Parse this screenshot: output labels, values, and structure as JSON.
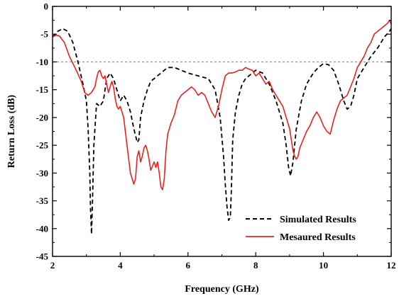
{
  "chart_data": {
    "type": "line",
    "xlabel": "Frequency (GHz)",
    "ylabel": "Return Loss (dB)",
    "xlim": [
      2,
      12
    ],
    "ylim": [
      -45,
      0
    ],
    "xticks": [
      2,
      4,
      6,
      8,
      10,
      12
    ],
    "yticks": [
      0,
      -5,
      -10,
      -15,
      -20,
      -25,
      -30,
      -35,
      -40,
      -45
    ],
    "reference_line": {
      "y": -10,
      "style": "dotted",
      "color": "#999999"
    },
    "legend": {
      "position": "bottom-right"
    },
    "series": [
      {
        "name": "Simulated Results",
        "color": "#000000",
        "dash": "dashed",
        "x": [
          2.0,
          2.15,
          2.3,
          2.45,
          2.6,
          2.75,
          2.9,
          3.0,
          3.05,
          3.1,
          3.12,
          3.15,
          3.18,
          3.22,
          3.3,
          3.4,
          3.5,
          3.6,
          3.7,
          3.8,
          3.9,
          4.0,
          4.1,
          4.2,
          4.3,
          4.4,
          4.5,
          4.55,
          4.6,
          4.7,
          4.8,
          4.9,
          5.0,
          5.2,
          5.4,
          5.6,
          5.8,
          6.0,
          6.3,
          6.6,
          6.8,
          6.95,
          7.05,
          7.1,
          7.15,
          7.2,
          7.25,
          7.28,
          7.32,
          7.4,
          7.5,
          7.6,
          7.7,
          7.8,
          8.0,
          8.2,
          8.4,
          8.6,
          8.8,
          8.9,
          8.97,
          9.03,
          9.1,
          9.2,
          9.35,
          9.5,
          9.7,
          9.85,
          10.0,
          10.15,
          10.3,
          10.45,
          10.6,
          10.7,
          10.8,
          10.9,
          11.0,
          11.2,
          11.4,
          11.6,
          11.8,
          11.95,
          12.0
        ],
        "y": [
          -5.5,
          -4.5,
          -4.0,
          -4.5,
          -6.5,
          -10.0,
          -14.0,
          -17.0,
          -22.0,
          -30.0,
          -36.0,
          -41.0,
          -35.0,
          -25.0,
          -17.5,
          -18.0,
          -17.0,
          -13.0,
          -12.0,
          -13.0,
          -15.0,
          -17.0,
          -16.0,
          -17.0,
          -19.0,
          -22.0,
          -24.5,
          -24.0,
          -20.0,
          -17.0,
          -15.0,
          -13.5,
          -13.0,
          -12.0,
          -11.0,
          -11.0,
          -11.5,
          -12.0,
          -12.5,
          -13.0,
          -15.0,
          -20.0,
          -27.0,
          -32.0,
          -36.0,
          -38.5,
          -38.0,
          -33.0,
          -24.0,
          -19.0,
          -16.0,
          -14.0,
          -13.0,
          -12.5,
          -11.5,
          -12.0,
          -14.0,
          -17.0,
          -21.0,
          -25.0,
          -29.0,
          -30.5,
          -28.0,
          -22.0,
          -17.0,
          -14.0,
          -12.0,
          -11.0,
          -10.3,
          -10.5,
          -11.5,
          -14.0,
          -17.0,
          -18.5,
          -18.0,
          -16.0,
          -13.0,
          -11.0,
          -9.0,
          -7.5,
          -5.5,
          -4.5,
          -4.0
        ]
      },
      {
        "name": "Mesaured Results",
        "color": "#e8231f",
        "dash": "solid",
        "x": [
          2.0,
          2.1,
          2.2,
          2.35,
          2.5,
          2.7,
          2.85,
          2.95,
          3.05,
          3.15,
          3.25,
          3.3,
          3.35,
          3.4,
          3.45,
          3.5,
          3.55,
          3.6,
          3.65,
          3.7,
          3.75,
          3.8,
          3.85,
          3.9,
          3.95,
          4.0,
          4.1,
          4.2,
          4.3,
          4.4,
          4.45,
          4.5,
          4.55,
          4.6,
          4.65,
          4.7,
          4.75,
          4.8,
          4.85,
          4.9,
          5.0,
          5.05,
          5.1,
          5.15,
          5.2,
          5.25,
          5.3,
          5.35,
          5.4,
          5.5,
          5.6,
          5.7,
          5.8,
          5.9,
          6.0,
          6.1,
          6.2,
          6.3,
          6.4,
          6.5,
          6.6,
          6.7,
          6.8,
          6.9,
          7.0,
          7.1,
          7.2,
          7.3,
          7.4,
          7.5,
          7.6,
          7.7,
          7.8,
          7.9,
          8.0,
          8.1,
          8.2,
          8.3,
          8.4,
          8.5,
          8.6,
          8.7,
          8.8,
          8.9,
          9.0,
          9.05,
          9.1,
          9.15,
          9.2,
          9.25,
          9.3,
          9.4,
          9.5,
          9.6,
          9.7,
          9.8,
          9.9,
          10.0,
          10.1,
          10.2,
          10.3,
          10.4,
          10.5,
          10.6,
          10.7,
          10.8,
          10.9,
          11.0,
          11.1,
          11.2,
          11.3,
          11.4,
          11.5,
          11.6,
          11.7,
          11.8,
          11.9,
          11.95,
          12.0
        ],
        "y": [
          -5.5,
          -5.2,
          -5.3,
          -6.5,
          -9.0,
          -11.5,
          -13.5,
          -15.5,
          -16.0,
          -15.5,
          -14.5,
          -13.0,
          -11.8,
          -11.5,
          -12.5,
          -13.0,
          -12.5,
          -14.0,
          -15.5,
          -14.5,
          -13.5,
          -14.5,
          -16.5,
          -18.0,
          -18.5,
          -18.0,
          -20.0,
          -25.0,
          -30.0,
          -32.0,
          -31.0,
          -27.0,
          -26.0,
          -28.0,
          -27.0,
          -25.5,
          -25.0,
          -26.0,
          -27.5,
          -29.5,
          -28.0,
          -29.0,
          -28.0,
          -30.0,
          -32.5,
          -33.0,
          -31.0,
          -26.0,
          -23.0,
          -21.0,
          -19.5,
          -17.0,
          -16.0,
          -15.5,
          -15.0,
          -14.5,
          -15.0,
          -16.0,
          -15.5,
          -16.0,
          -17.5,
          -19.0,
          -20.0,
          -18.0,
          -15.0,
          -12.5,
          -12.0,
          -12.0,
          -11.8,
          -11.5,
          -11.5,
          -11.0,
          -11.3,
          -11.5,
          -12.5,
          -12.0,
          -13.0,
          -14.0,
          -13.5,
          -15.0,
          -16.0,
          -17.0,
          -18.0,
          -20.0,
          -22.0,
          -24.0,
          -26.0,
          -27.0,
          -27.5,
          -27.0,
          -25.5,
          -24.0,
          -22.5,
          -21.5,
          -20.0,
          -19.0,
          -20.0,
          -21.5,
          -22.5,
          -23.0,
          -20.5,
          -18.5,
          -17.0,
          -16.5,
          -16.0,
          -14.5,
          -13.0,
          -11.0,
          -10.0,
          -9.0,
          -7.5,
          -6.5,
          -5.0,
          -4.5,
          -4.0,
          -3.5,
          -3.0,
          -2.5,
          -3.2
        ]
      }
    ]
  }
}
